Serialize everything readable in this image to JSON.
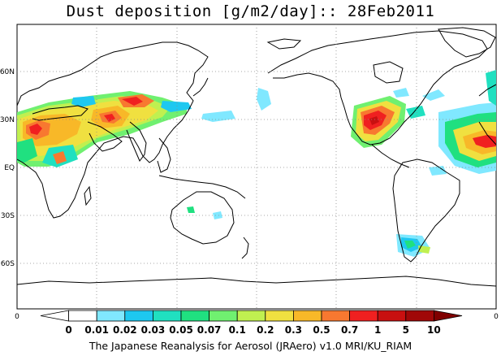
{
  "title": "Dust deposition [g/m2/day]:: 28Feb2011",
  "footer": "The Japanese Reanalysis for Aerosol (JRAero) v1.0 MRI/KU_RIAM",
  "lat_labels": [
    "60N",
    "30N",
    "EQ",
    "30S",
    "60S"
  ],
  "edge_labels": {
    "left": "0",
    "right": "0"
  },
  "legend": {
    "ticks": [
      "0",
      "0.01",
      "0.02",
      "0.03",
      "0.05",
      "0.07",
      "0.1",
      "0.2",
      "0.3",
      "0.5",
      "0.7",
      "1",
      "5",
      "10"
    ],
    "colors": [
      "#ffffff",
      "#ffffff",
      "#80e8ff",
      "#1ec8f0",
      "#20e0c0",
      "#20e080",
      "#70f070",
      "#c0f050",
      "#f0e040",
      "#f8b828",
      "#f87830",
      "#f02020",
      "#c81010",
      "#a00808",
      "#800000"
    ]
  }
}
